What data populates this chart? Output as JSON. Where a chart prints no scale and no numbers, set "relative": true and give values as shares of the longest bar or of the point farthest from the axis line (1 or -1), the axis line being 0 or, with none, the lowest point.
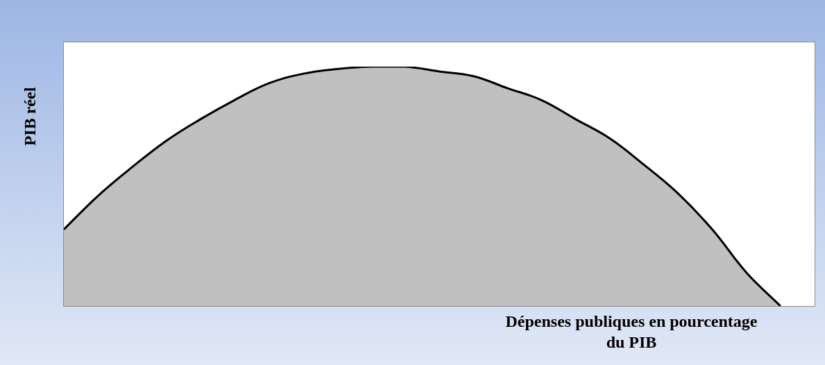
{
  "chart_data": {
    "type": "area",
    "relative": true,
    "xlabel": "Dépenses publiques en pourcentage du PIB",
    "ylabel": "PIB réel",
    "categories": [
      null,
      null,
      null,
      null,
      null,
      null,
      null,
      null,
      null,
      null,
      null,
      null,
      null,
      null,
      null,
      null,
      null,
      null,
      null,
      null,
      null,
      null,
      null
    ],
    "series": [
      {
        "color": "#c0c0c0",
        "values": [
          0.32,
          0.46,
          0.58,
          0.69,
          0.78,
          0.86,
          0.93,
          0.97,
          0.99,
          1,
          1,
          0.98,
          0.96,
          0.91,
          0.86,
          0.78,
          0.7,
          0.59,
          0.47,
          0.32,
          0.14,
          0,
          null
        ]
      }
    ],
    "legend": false
  }
}
